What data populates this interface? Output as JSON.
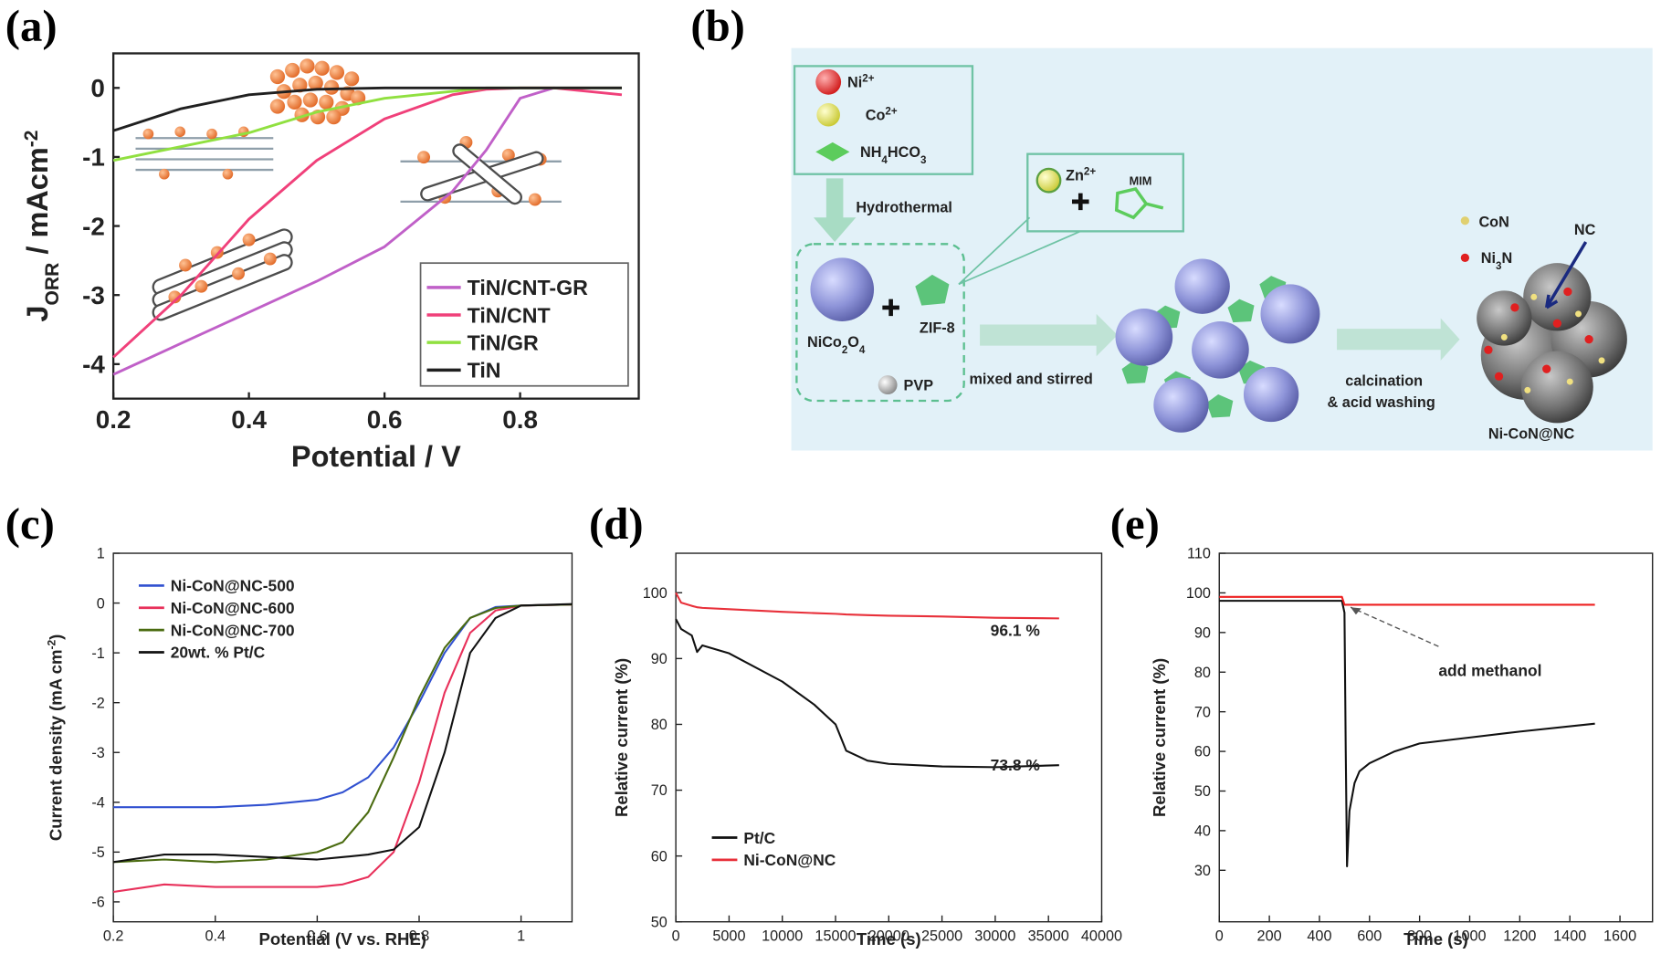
{
  "chart_data": [
    {
      "type": "line",
      "panel_label": "(a)",
      "xlabel": "Potential / V",
      "ylabel": [
        "J",
        "ORR",
        " / mAcm",
        "-2"
      ],
      "x": [
        0.2,
        0.3,
        0.4,
        0.5,
        0.6,
        0.7,
        0.75,
        0.8,
        0.85,
        0.9,
        0.95
      ],
      "series": [
        {
          "name": "TiN/CNT-GR",
          "color": "#c060c8",
          "values": [
            -4.15,
            -3.7,
            -3.25,
            -2.8,
            -2.3,
            -1.5,
            -0.9,
            -0.15,
            0,
            0,
            0
          ]
        },
        {
          "name": "TiN/CNT",
          "color": "#f0407a",
          "values": [
            -3.9,
            -3.0,
            -1.9,
            -1.05,
            -0.45,
            -0.1,
            -0.02,
            0,
            0,
            -0.05,
            -0.1
          ]
        },
        {
          "name": "TiN/GR",
          "color": "#90e040",
          "values": [
            -1.05,
            -0.85,
            -0.65,
            -0.35,
            -0.15,
            -0.05,
            0,
            0,
            0,
            0,
            0
          ]
        },
        {
          "name": "TiN",
          "color": "#202020",
          "values": [
            -0.62,
            -0.3,
            -0.1,
            -0.02,
            0,
            0,
            0,
            0,
            0,
            0,
            0
          ]
        }
      ],
      "xlim": [
        0.2,
        0.975
      ],
      "ylim": [
        -4.5,
        0.5
      ],
      "xticks": [
        0.2,
        0.4,
        0.6,
        0.8
      ],
      "yticks": [
        0,
        -1,
        -2,
        -3,
        -4
      ],
      "legend": "lower right"
    },
    {
      "type": "line",
      "panel_label": "(c)",
      "xlabel": "Potential (V vs. RHE)",
      "ylabel": [
        "Current density (mA cm",
        "-2",
        ")"
      ],
      "x": [
        0.2,
        0.3,
        0.4,
        0.5,
        0.6,
        0.65,
        0.7,
        0.75,
        0.8,
        0.85,
        0.9,
        0.95,
        1.0,
        1.1
      ],
      "series": [
        {
          "name": "Ni-CoN@NC-500",
          "color": "#3050d0",
          "values": [
            -4.1,
            -4.1,
            -4.1,
            -4.05,
            -3.95,
            -3.8,
            -3.5,
            -2.9,
            -2.0,
            -1.0,
            -0.3,
            -0.08,
            -0.05,
            -0.03
          ]
        },
        {
          "name": "Ni-CoN@NC-600",
          "color": "#e8305a",
          "values": [
            -5.8,
            -5.65,
            -5.7,
            -5.7,
            -5.7,
            -5.65,
            -5.5,
            -5.0,
            -3.6,
            -1.8,
            -0.6,
            -0.15,
            -0.05,
            -0.03
          ]
        },
        {
          "name": "Ni-CoN@NC-700",
          "color": "#4a6b10",
          "values": [
            -5.2,
            -5.15,
            -5.2,
            -5.15,
            -5.0,
            -4.8,
            -4.2,
            -3.1,
            -1.9,
            -0.9,
            -0.3,
            -0.1,
            -0.05,
            -0.03
          ]
        },
        {
          "name": "20wt. % Pt/C",
          "color": "#111111",
          "values": [
            -5.2,
            -5.05,
            -5.05,
            -5.1,
            -5.15,
            -5.1,
            -5.05,
            -4.95,
            -4.5,
            -3.0,
            -1.0,
            -0.3,
            -0.05,
            -0.02
          ]
        }
      ],
      "xlim": [
        0.2,
        1.1
      ],
      "ylim": [
        -6.4,
        1
      ],
      "xticks": [
        0.2,
        0.4,
        0.6,
        0.8,
        1.0
      ],
      "yticks": [
        1,
        0,
        -1,
        -2,
        -3,
        -4,
        -5,
        -6
      ],
      "legend": "upper left"
    },
    {
      "type": "line",
      "panel_label": "(d)",
      "xlabel": "Time (s)",
      "ylabel": "Relative current (%)",
      "x": [
        0,
        500,
        1500,
        2000,
        2500,
        5000,
        10000,
        13000,
        15000,
        16000,
        18000,
        20000,
        25000,
        30000,
        36000
      ],
      "series": [
        {
          "name": "Pt/C",
          "color": "#111111",
          "values": [
            96,
            94.5,
            93.5,
            91,
            92,
            90.8,
            86.5,
            83,
            80,
            76,
            74.5,
            74,
            73.6,
            73.5,
            73.8
          ]
        },
        {
          "name": "Ni-CoN@NC",
          "color": "#e8303a",
          "values": [
            100,
            98.5,
            98,
            97.8,
            97.7,
            97.5,
            97.1,
            96.9,
            96.8,
            96.7,
            96.6,
            96.5,
            96.4,
            96.2,
            96.1
          ]
        }
      ],
      "xlim": [
        0,
        40000
      ],
      "ylim": [
        50,
        106
      ],
      "xticks": [
        0,
        5000,
        10000,
        15000,
        20000,
        25000,
        30000,
        35000,
        40000
      ],
      "yticks": [
        50,
        60,
        70,
        80,
        90,
        100
      ],
      "legend": "lower left",
      "annotations": [
        "96.1 %",
        "73.8 %"
      ]
    },
    {
      "type": "line",
      "panel_label": "(e)",
      "xlabel": "Time (s)",
      "ylabel": "Relative current (%)",
      "x": [
        0,
        100,
        200,
        300,
        400,
        490,
        500,
        505,
        510,
        520,
        540,
        560,
        600,
        700,
        800,
        1000,
        1200,
        1500
      ],
      "series": [
        {
          "color": "#111111",
          "values": [
            98,
            98,
            98,
            98,
            98,
            98,
            95,
            60,
            31,
            45,
            52,
            55,
            57,
            60,
            62,
            63.5,
            65,
            67
          ]
        },
        {
          "color": "#ee2020",
          "values": [
            99,
            99,
            99,
            99,
            99,
            99,
            97,
            97,
            97,
            97,
            97,
            97,
            97,
            97,
            97,
            97,
            97,
            97
          ]
        }
      ],
      "xlim": [
        0,
        1730
      ],
      "ylim": [
        17,
        110
      ],
      "xticks": [
        0,
        200,
        400,
        600,
        800,
        1000,
        1200,
        1400,
        1600
      ],
      "yticks": [
        30,
        40,
        50,
        60,
        70,
        80,
        90,
        100,
        110
      ],
      "annotations": [
        "add methanol"
      ]
    }
  ],
  "diagram": {
    "panel_label": "(b)",
    "ni": [
      "Ni",
      "2+"
    ],
    "co": [
      "Co",
      "2+"
    ],
    "nh": [
      "NH",
      "4",
      "HCO",
      "3"
    ],
    "hydro": "Hydrothermal",
    "zn": [
      "Zn",
      "2+"
    ],
    "mim": "MIM",
    "nico": [
      "NiCo",
      "2",
      "O",
      "4"
    ],
    "zif": "ZIF-8",
    "pvp": "PVP",
    "mixed": "mixed and stirred",
    "calc": "calcination",
    "acid": "& acid washing",
    "con": "CoN",
    "ni3n": [
      "Ni",
      "3",
      "N"
    ],
    "nc": "NC",
    "product": "Ni-CoN@NC"
  }
}
